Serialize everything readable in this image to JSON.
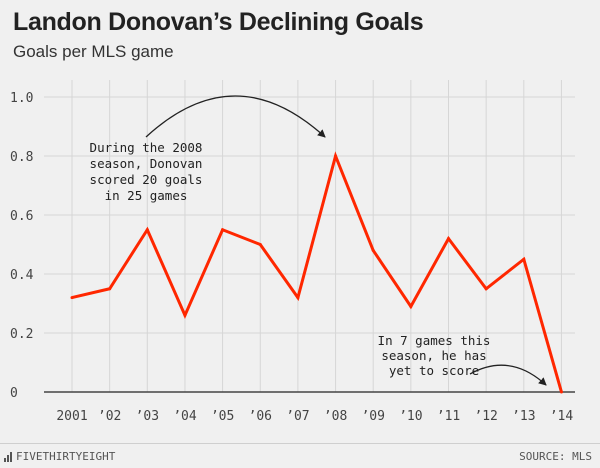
{
  "chart_data": {
    "type": "line",
    "title": "Landon Donovan’s Declining Goals",
    "subtitle": "Goals per MLS game",
    "categories": [
      "2001",
      "’02",
      "’03",
      "’04",
      "’05",
      "’06",
      "’07",
      "’08",
      "’09",
      "’10",
      "’11",
      "’12",
      "’13",
      "’14"
    ],
    "values": [
      0.32,
      0.35,
      0.55,
      0.26,
      0.55,
      0.5,
      0.32,
      0.8,
      0.48,
      0.29,
      0.52,
      0.35,
      0.45,
      0.0
    ],
    "y_ticks": [
      "1.0",
      "0.8",
      "0.6",
      "0.4",
      "0.2",
      "0"
    ],
    "ylim": [
      0,
      1.0
    ],
    "xlabel": "",
    "ylabel": "",
    "line_color": "#ff2700",
    "grid": true,
    "annotations": [
      {
        "lines": [
          "During the 2008",
          "season, Donovan",
          "scored 20 goals",
          "in 25 games"
        ]
      },
      {
        "lines": [
          "In 7 games this",
          "season, he has",
          "yet to score"
        ]
      }
    ]
  },
  "footer": {
    "brand": "FIVETHIRTYEIGHT",
    "source": "SOURCE: MLS"
  }
}
